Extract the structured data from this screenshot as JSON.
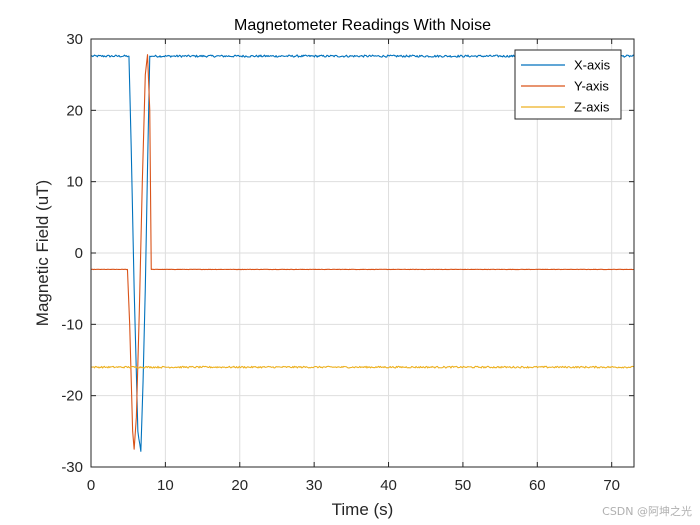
{
  "chart_data": {
    "type": "line",
    "title": "Magnetometer Readings With Noise",
    "xlabel": "Time (s)",
    "ylabel": "Magnetic Field (uT)",
    "xlim": [
      0,
      73
    ],
    "ylim": [
      -30,
      30
    ],
    "xticks": [
      0,
      10,
      20,
      30,
      40,
      50,
      60,
      70
    ],
    "yticks": [
      -30,
      -20,
      -10,
      0,
      10,
      20,
      30
    ],
    "grid": true,
    "legend_position": "top-right",
    "series": [
      {
        "name": "X-axis",
        "color": "#0072BD",
        "noise": 0.15,
        "x": [
          0,
          5.1,
          5.4,
          5.8,
          6.3,
          6.7,
          7.0,
          7.3,
          7.6,
          7.9,
          8.2,
          73
        ],
        "y": [
          27.6,
          27.6,
          15.0,
          -5.0,
          -25.0,
          -27.8,
          -18.0,
          -5.0,
          12.0,
          27.6,
          27.6,
          27.6
        ]
      },
      {
        "name": "Y-axis",
        "color": "#D95319",
        "noise": 0.02,
        "x": [
          0,
          4.9,
          5.2,
          5.6,
          5.8,
          6.1,
          6.5,
          6.9,
          7.3,
          7.6,
          7.9,
          8.1,
          73
        ],
        "y": [
          -2.3,
          -2.3,
          -10.0,
          -25.0,
          -27.5,
          -23.0,
          -8.0,
          10.0,
          25.0,
          27.8,
          20.0,
          -2.3,
          -2.3
        ]
      },
      {
        "name": "Z-axis",
        "color": "#EDB120",
        "noise": 0.12,
        "x": [
          0,
          73
        ],
        "y": [
          -16.0,
          -16.0
        ]
      }
    ]
  },
  "watermark": "CSDN @阿坤之光"
}
